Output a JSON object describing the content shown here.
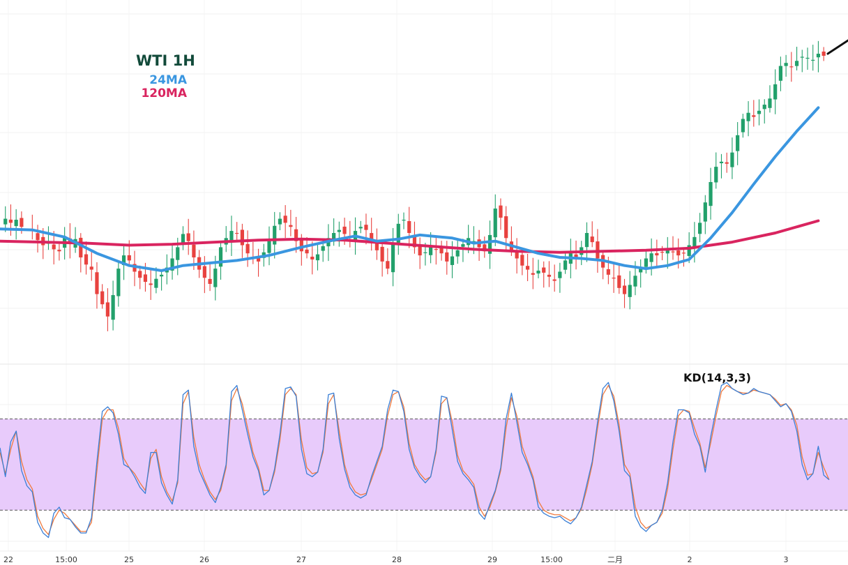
{
  "chart_data": [
    {
      "type": "candlestick",
      "title": "WTI 1H",
      "legend": [
        {
          "name": "24MA",
          "color": "#3a96e0"
        },
        {
          "name": "120MA",
          "color": "#d9245f"
        }
      ],
      "colors": {
        "up": "#22a06b",
        "down": "#e8423f",
        "ma24": "#3a96e0",
        "ma120": "#d9245f"
      },
      "x_tick_labels": [
        "22",
        "15:00",
        "25",
        "26",
        "27",
        "28",
        "29",
        "15:00",
        "二月",
        "2",
        "3"
      ],
      "approx_price_path": [
        [
          0,
          50.5
        ],
        [
          1,
          51.4
        ],
        [
          2,
          51.0
        ],
        [
          3,
          51.3
        ],
        [
          4,
          50.6
        ],
        [
          6,
          50.2
        ],
        [
          7,
          49.3
        ],
        [
          8,
          48.8
        ],
        [
          9,
          49.2
        ],
        [
          10,
          48.4
        ],
        [
          11,
          48.2
        ],
        [
          12,
          49.5
        ],
        [
          13,
          48.9
        ],
        [
          14,
          49.4
        ],
        [
          15,
          47.6
        ],
        [
          16,
          46.9
        ],
        [
          17,
          46.4
        ],
        [
          18,
          44.0
        ],
        [
          19,
          43.0
        ],
        [
          20,
          41.8
        ],
        [
          21,
          43.9
        ],
        [
          22,
          46.5
        ],
        [
          23,
          47.8
        ],
        [
          24,
          47.3
        ],
        [
          25,
          46.2
        ],
        [
          26,
          45.6
        ],
        [
          27,
          45.2
        ],
        [
          28,
          44.9
        ],
        [
          29,
          45.5
        ],
        [
          30,
          45.9
        ],
        [
          31,
          46.6
        ],
        [
          32,
          47.5
        ],
        [
          33,
          48.6
        ],
        [
          34,
          49.9
        ],
        [
          35,
          49.2
        ],
        [
          36,
          47.6
        ],
        [
          37,
          46.4
        ],
        [
          38,
          45.6
        ],
        [
          39,
          45.0
        ],
        [
          40,
          46.5
        ],
        [
          41,
          48.6
        ],
        [
          42,
          49.5
        ],
        [
          43,
          50.2
        ],
        [
          44,
          50.0
        ],
        [
          45,
          48.8
        ],
        [
          46,
          48.0
        ],
        [
          47,
          47.6
        ],
        [
          48,
          47.2
        ],
        [
          49,
          48.1
        ],
        [
          50,
          49.2
        ],
        [
          51,
          50.7
        ],
        [
          52,
          51.4
        ],
        [
          53,
          51.0
        ],
        [
          54,
          50.6
        ],
        [
          55,
          49.2
        ],
        [
          56,
          48.2
        ],
        [
          57,
          48.0
        ],
        [
          58,
          47.4
        ],
        [
          59,
          47.9
        ],
        [
          60,
          48.7
        ],
        [
          61,
          49.5
        ],
        [
          62,
          50.0
        ],
        [
          63,
          50.3
        ],
        [
          64,
          49.9
        ],
        [
          65,
          49.6
        ],
        [
          66,
          50.2
        ],
        [
          67,
          50.6
        ],
        [
          68,
          50.3
        ],
        [
          69,
          49.4
        ],
        [
          70,
          48.3
        ],
        [
          71,
          47.2
        ],
        [
          72,
          46.5
        ],
        [
          73,
          49.0
        ],
        [
          74,
          50.9
        ],
        [
          75,
          51.3
        ],
        [
          76,
          50.0
        ],
        [
          77,
          48.6
        ],
        [
          78,
          47.8
        ],
        [
          79,
          48.1
        ],
        [
          80,
          48.6
        ],
        [
          81,
          48.4
        ],
        [
          82,
          48.0
        ],
        [
          83,
          47.2
        ],
        [
          84,
          47.7
        ],
        [
          85,
          48.3
        ],
        [
          86,
          48.9
        ],
        [
          87,
          49.5
        ],
        [
          88,
          49.2
        ],
        [
          89,
          48.6
        ],
        [
          90,
          48.2
        ],
        [
          91,
          49.8
        ],
        [
          92,
          52.4
        ],
        [
          93,
          51.5
        ],
        [
          94,
          49.5
        ],
        [
          95,
          48.3
        ],
        [
          96,
          47.5
        ],
        [
          97,
          46.8
        ],
        [
          98,
          46.4
        ],
        [
          99,
          45.9
        ],
        [
          100,
          46.3
        ],
        [
          101,
          46.1
        ],
        [
          102,
          45.7
        ],
        [
          103,
          45.3
        ],
        [
          104,
          46.2
        ],
        [
          105,
          47.3
        ],
        [
          106,
          48.0
        ],
        [
          107,
          47.5
        ],
        [
          108,
          48.6
        ],
        [
          109,
          50.0
        ],
        [
          110,
          49.1
        ],
        [
          111,
          47.5
        ],
        [
          112,
          46.6
        ],
        [
          113,
          45.9
        ],
        [
          114,
          45.6
        ],
        [
          115,
          44.6
        ],
        [
          116,
          44.0
        ],
        [
          117,
          44.9
        ],
        [
          118,
          45.8
        ],
        [
          119,
          46.6
        ],
        [
          120,
          47.5
        ],
        [
          121,
          48.0
        ],
        [
          122,
          47.8
        ],
        [
          123,
          48.1
        ],
        [
          124,
          48.5
        ],
        [
          125,
          48.1
        ],
        [
          126,
          47.8
        ],
        [
          127,
          48.0
        ],
        [
          128,
          48.8
        ],
        [
          129,
          49.6
        ],
        [
          130,
          51.0
        ],
        [
          131,
          53.0
        ],
        [
          132,
          55.0
        ],
        [
          133,
          56.5
        ],
        [
          134,
          57.0
        ],
        [
          135,
          56.8
        ],
        [
          136,
          57.9
        ],
        [
          137,
          59.6
        ],
        [
          138,
          61.2
        ],
        [
          139,
          61.8
        ],
        [
          140,
          61.4
        ],
        [
          141,
          62.0
        ],
        [
          142,
          62.6
        ],
        [
          143,
          63.2
        ],
        [
          144,
          64.6
        ],
        [
          145,
          66.4
        ],
        [
          146,
          66.7
        ],
        [
          147,
          66.3
        ],
        [
          148,
          66.9
        ],
        [
          149,
          67.3
        ],
        [
          150,
          67.2
        ],
        [
          151,
          67.0
        ],
        [
          152,
          67.6
        ],
        [
          153,
          67.4
        ]
      ],
      "ma24_path": [
        [
          0,
          50.4
        ],
        [
          6,
          50.3
        ],
        [
          12,
          49.6
        ],
        [
          18,
          48.0
        ],
        [
          24,
          46.8
        ],
        [
          30,
          46.3
        ],
        [
          34,
          46.8
        ],
        [
          38,
          47.0
        ],
        [
          44,
          47.3
        ],
        [
          50,
          47.8
        ],
        [
          56,
          48.6
        ],
        [
          62,
          49.3
        ],
        [
          66,
          49.7
        ],
        [
          70,
          49.2
        ],
        [
          74,
          49.4
        ],
        [
          78,
          49.8
        ],
        [
          84,
          49.5
        ],
        [
          88,
          49.0
        ],
        [
          92,
          49.2
        ],
        [
          96,
          48.6
        ],
        [
          100,
          48.0
        ],
        [
          104,
          47.6
        ],
        [
          108,
          47.5
        ],
        [
          112,
          47.3
        ],
        [
          116,
          46.8
        ],
        [
          120,
          46.5
        ],
        [
          124,
          46.8
        ],
        [
          128,
          47.4
        ],
        [
          132,
          49.5
        ],
        [
          136,
          52.0
        ],
        [
          140,
          54.8
        ],
        [
          144,
          57.5
        ],
        [
          148,
          60.0
        ],
        [
          152,
          62.3
        ]
      ],
      "ma120_path": [
        [
          0,
          49.2
        ],
        [
          8,
          49.1
        ],
        [
          16,
          49.0
        ],
        [
          24,
          48.8
        ],
        [
          32,
          48.9
        ],
        [
          40,
          49.1
        ],
        [
          48,
          49.3
        ],
        [
          56,
          49.4
        ],
        [
          64,
          49.3
        ],
        [
          72,
          49.0
        ],
        [
          80,
          48.7
        ],
        [
          88,
          48.4
        ],
        [
          96,
          48.2
        ],
        [
          104,
          48.1
        ],
        [
          112,
          48.2
        ],
        [
          120,
          48.3
        ],
        [
          128,
          48.5
        ],
        [
          136,
          49.1
        ],
        [
          144,
          50.0
        ],
        [
          152,
          51.2
        ]
      ]
    },
    {
      "type": "line",
      "title": "KD(14,3,3)",
      "ylim": [
        0,
        100
      ],
      "band": [
        20,
        80
      ],
      "colors": {
        "k": "#3a7fd6",
        "d": "#f07a3d",
        "band": "#e8cbfb"
      },
      "series": [
        {
          "values": [
            61,
            42,
            65,
            72,
            46,
            36,
            32,
            12,
            5,
            2,
            18,
            22,
            15,
            14,
            9,
            5,
            5,
            15,
            52,
            85,
            88,
            84,
            70,
            50,
            48,
            42,
            35,
            31,
            58,
            58,
            38,
            30,
            24,
            40,
            96,
            99,
            62,
            46,
            38,
            30,
            25,
            35,
            50,
            98,
            102,
            86,
            70,
            55,
            46,
            30,
            33,
            47,
            70,
            100,
            101,
            95,
            60,
            44,
            42,
            45,
            60,
            96,
            97,
            67,
            47,
            35,
            30,
            28,
            30,
            42,
            52,
            62,
            86,
            99,
            98,
            85,
            60,
            48,
            42,
            38,
            42,
            60,
            95,
            94,
            73,
            52,
            44,
            40,
            35,
            18,
            14,
            24,
            33,
            48,
            80,
            97,
            78,
            58,
            50,
            40,
            22,
            18,
            16,
            15,
            16,
            13,
            11,
            15,
            22,
            37,
            52,
            78,
            100,
            104,
            92,
            72,
            46,
            42,
            16,
            9,
            6,
            10,
            12,
            20,
            38,
            65,
            86,
            86,
            84,
            70,
            62,
            45,
            68,
            86,
            102,
            104,
            100,
            98,
            96,
            97,
            100,
            98,
            97,
            96,
            92,
            88,
            90,
            85,
            72,
            50,
            40,
            44,
            62,
            43,
            40
          ]
        },
        {
          "values": [
            58,
            44,
            60,
            72,
            52,
            40,
            34,
            16,
            8,
            4,
            14,
            20,
            18,
            14,
            10,
            6,
            6,
            12,
            46,
            80,
            86,
            86,
            74,
            54,
            48,
            44,
            38,
            33,
            54,
            60,
            42,
            32,
            26,
            38,
            90,
            98,
            68,
            50,
            40,
            32,
            27,
            33,
            48,
            92,
            100,
            90,
            74,
            58,
            48,
            33,
            33,
            45,
            66,
            96,
            100,
            96,
            66,
            48,
            44,
            45,
            58,
            90,
            96,
            72,
            50,
            38,
            32,
            30,
            31,
            40,
            50,
            60,
            82,
            96,
            98,
            88,
            64,
            50,
            44,
            40,
            42,
            58,
            90,
            94,
            78,
            56,
            46,
            42,
            37,
            22,
            16,
            22,
            32,
            46,
            74,
            94,
            82,
            62,
            52,
            42,
            26,
            20,
            18,
            17,
            17,
            15,
            13,
            15,
            21,
            34,
            50,
            74,
            96,
            102,
            95,
            76,
            50,
            44,
            22,
            12,
            8,
            10,
            12,
            18,
            34,
            60,
            82,
            86,
            85,
            74,
            64,
            48,
            64,
            82,
            98,
            102,
            100,
            98,
            97,
            97,
            99,
            98,
            97,
            96,
            93,
            89,
            90,
            86,
            76,
            55,
            43,
            44,
            58,
            48,
            40
          ]
        }
      ]
    }
  ]
}
